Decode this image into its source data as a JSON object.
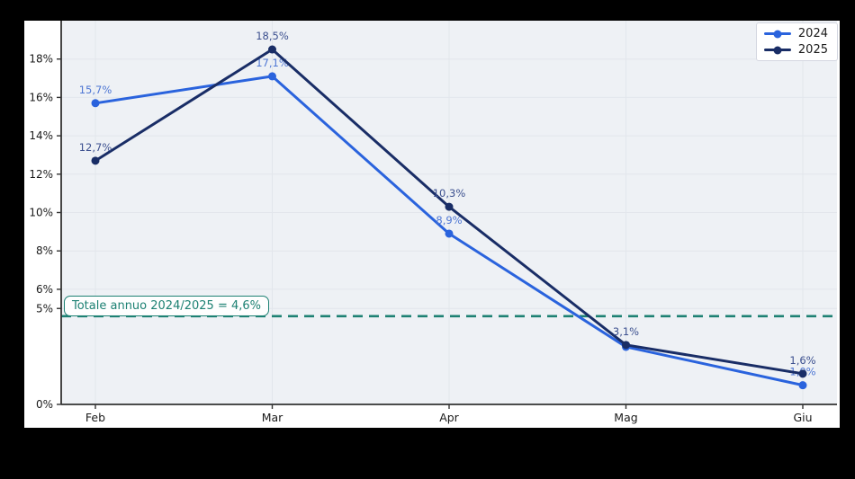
{
  "canvas": {
    "background": "#000000",
    "figure_background": "#ffffff",
    "plot_background": "#eef1f5",
    "grid_color": "#e2e6ec",
    "axis_color": "#333333",
    "tick_label_color": "#1a1a1a"
  },
  "chart_data": {
    "type": "line",
    "title": "",
    "xlabel": "",
    "ylabel": "",
    "categories": [
      "Feb",
      "Mar",
      "Apr",
      "Mag",
      "Giu"
    ],
    "series": [
      {
        "name": "2024",
        "color": "#2a63dd",
        "label_color": "#4f77d4",
        "values": [
          15.7,
          17.1,
          8.9,
          3.0,
          1.0
        ],
        "point_labels": [
          "15,7%",
          "17,1%",
          "8,9%",
          null,
          "1,0%"
        ]
      },
      {
        "name": "2025",
        "color": "#192d66",
        "label_color": "#3c508f",
        "values": [
          12.7,
          18.5,
          10.3,
          3.1,
          1.6
        ],
        "point_labels": [
          "12,7%",
          "18,5%",
          "10,3%",
          "3,1%",
          "1,6%"
        ]
      }
    ],
    "yticks": [
      0,
      5,
      6,
      8,
      10,
      12,
      14,
      16,
      18
    ],
    "ytick_labels": [
      "0%",
      "5%",
      "6%",
      "8%",
      "10%",
      "12%",
      "14%",
      "16%",
      "18%"
    ],
    "ylim": [
      0,
      20
    ],
    "grid": true,
    "legend_position": "top-right",
    "threshold": {
      "value": 4.6,
      "label": "Totale annuo 2024/2025 = 4,6%",
      "color": "#1d8173"
    }
  }
}
